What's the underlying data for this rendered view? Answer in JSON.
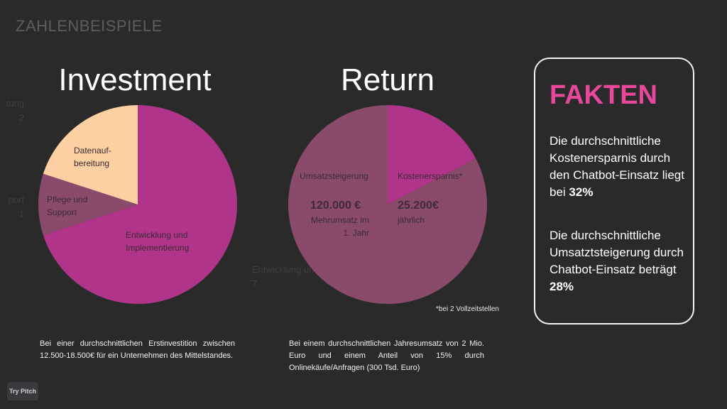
{
  "slide": {
    "section_label": "ZAHLENBEISPIELE"
  },
  "ghost_text": {
    "left_top": "tung\n2",
    "left_mid": "port\n1",
    "center": "Entwicklung und Impleme\n7"
  },
  "chart_data": [
    {
      "type": "pie",
      "title": "Investment",
      "slices": [
        {
          "label": "Entwicklung und Implementierung",
          "value": 7,
          "color": "#b0358a"
        },
        {
          "label": "Pflege und Support",
          "value": 1,
          "color": "#8a4a6a"
        },
        {
          "label": "Datenauf-bereitung",
          "value": 2,
          "color": "#fdd0a4"
        }
      ]
    },
    {
      "type": "pie",
      "title": "Return",
      "slices": [
        {
          "label": "Kostenersparnis*",
          "value": 25200,
          "color": "#b0358a",
          "value_text": "25.200€",
          "detail": "jährlich"
        },
        {
          "label": "Umsatzsteigerung",
          "value": 120000,
          "color": "#8a4a6a",
          "value_text": "120.000 €",
          "detail": "Mehrumsatz im 1. Jahr"
        }
      ]
    }
  ],
  "investment": {
    "title": "Investment",
    "label_datenaufbereitung": "Datenauf-\nbereitung",
    "label_pflege": "Pflege und\nSupport",
    "label_entwicklung": "Entwicklung und\nImplementierung",
    "description": "Bei einer durchschnittlichen Erstinvestition zwischen 12.500-18.500€ für ein Unternehmen des Mittelstandes."
  },
  "return": {
    "title": "Return",
    "label_umsatz": "Umsatzsteigerung",
    "value_umsatz": "120.000 €",
    "detail_umsatz": "Mehrumsatz im\n1. Jahr",
    "label_kosten": "Kostenersparnis*",
    "value_kosten": "25.200€",
    "detail_kosten": "jährlich",
    "footnote": "*bei 2 Vollzeitstellen",
    "description": "Bei einem durchschnittlichen Jahresumsatz von 2 Mio. Euro und einem Anteil von 15% durch Onlinekäufe/Anfragen (300 Tsd. Euro)"
  },
  "facts": {
    "title": "FAKTEN",
    "fact1_text": "Die durchschnittliche Kostenersparnis durch den Chatbot-Einsatz liegt bei ",
    "fact1_value": "32%",
    "fact2_text": "Die durchschnittliche Umsatztsteigerung durch Chatbot-Einsatz beträgt ",
    "fact2_value": "28%"
  },
  "badge": {
    "try_pitch": "Try Pitch"
  }
}
